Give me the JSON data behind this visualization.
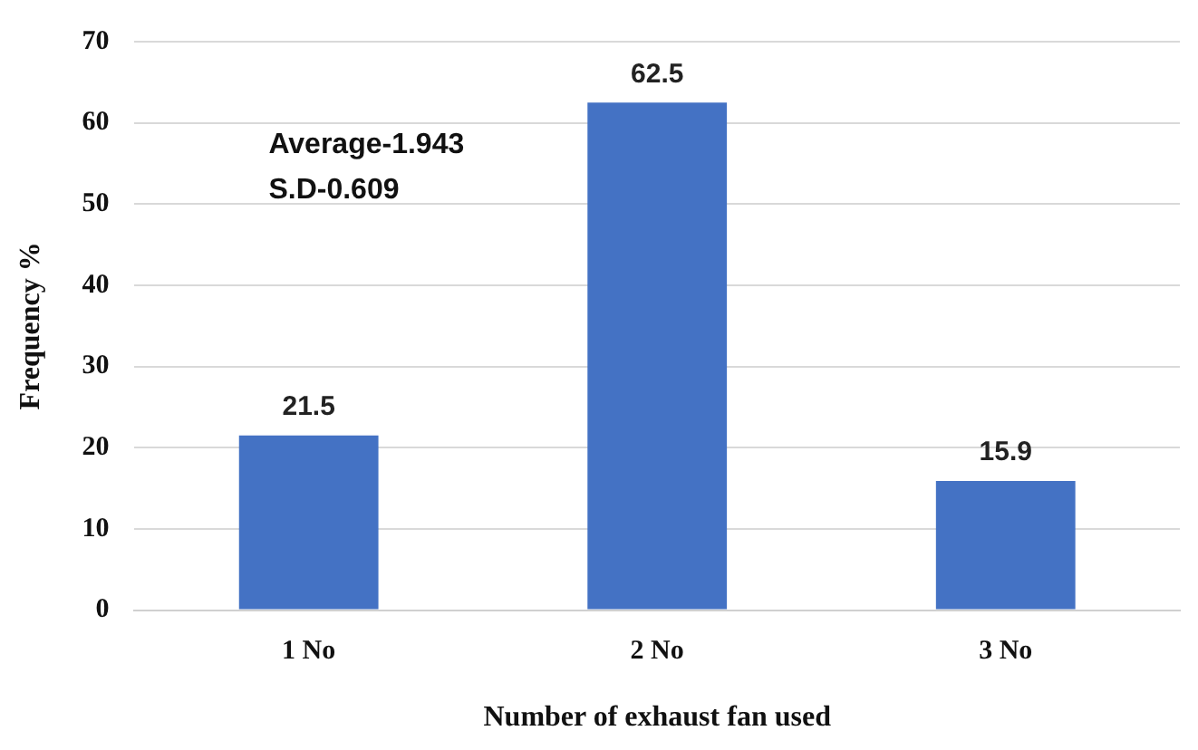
{
  "chart_data": {
    "type": "bar",
    "xlabel": "Number of exhaust fan used",
    "ylabel": "Frequency %",
    "categories": [
      "1 No",
      "2 No",
      "3 No"
    ],
    "values": [
      21.5,
      62.5,
      15.9
    ],
    "color": "#4472c4",
    "ylim": [
      0,
      70
    ],
    "yticks": [
      0,
      10,
      20,
      30,
      40,
      50,
      60,
      70
    ],
    "grid": "y",
    "data_labels": true,
    "legend": false,
    "annotations": [
      "Average-1.943",
      "S.D-0.609"
    ]
  }
}
